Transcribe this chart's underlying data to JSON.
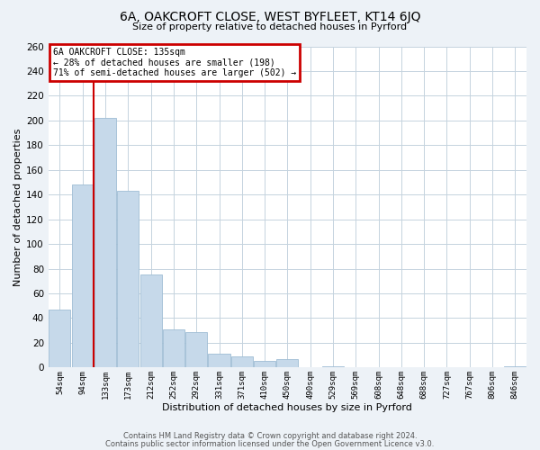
{
  "title": "6A, OAKCROFT CLOSE, WEST BYFLEET, KT14 6JQ",
  "subtitle": "Size of property relative to detached houses in Pyrford",
  "xlabel": "Distribution of detached houses by size in Pyrford",
  "ylabel": "Number of detached properties",
  "bar_labels": [
    "54sqm",
    "94sqm",
    "133sqm",
    "173sqm",
    "212sqm",
    "252sqm",
    "292sqm",
    "331sqm",
    "371sqm",
    "410sqm",
    "450sqm",
    "490sqm",
    "529sqm",
    "569sqm",
    "608sqm",
    "648sqm",
    "688sqm",
    "727sqm",
    "767sqm",
    "806sqm",
    "846sqm"
  ],
  "bar_values": [
    47,
    148,
    202,
    143,
    75,
    31,
    29,
    11,
    9,
    5,
    7,
    0,
    1,
    0,
    0,
    0,
    0,
    0,
    0,
    0,
    1
  ],
  "bar_color": "#c6d9ea",
  "bar_edgecolor": "#9fbdd4",
  "ylim": [
    0,
    260
  ],
  "yticks": [
    0,
    20,
    40,
    60,
    80,
    100,
    120,
    140,
    160,
    180,
    200,
    220,
    240,
    260
  ],
  "vline_color": "#cc0000",
  "annotation_title": "6A OAKCROFT CLOSE: 135sqm",
  "annotation_line1": "← 28% of detached houses are smaller (198)",
  "annotation_line2": "71% of semi-detached houses are larger (502) →",
  "annotation_box_edgecolor": "#cc0000",
  "footer_line1": "Contains HM Land Registry data © Crown copyright and database right 2024.",
  "footer_line2": "Contains public sector information licensed under the Open Government Licence v3.0.",
  "bg_color": "#edf2f7",
  "plot_bg_color": "#ffffff",
  "grid_color": "#c5d3de"
}
